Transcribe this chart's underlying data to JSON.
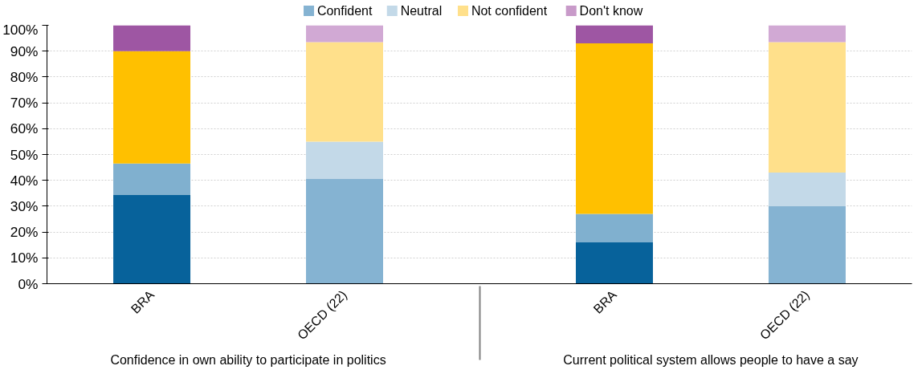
{
  "chart_data": {
    "type": "bar",
    "stacked": true,
    "categories": [
      "BRA",
      "OECD (22)",
      "BRA",
      "OECD (22)"
    ],
    "series": [
      {
        "name": "Confident",
        "color": "#85b3d2",
        "colors": [
          "#07629b",
          "#85b3d2",
          "#07629b",
          "#85b3d2"
        ],
        "values": [
          34.5,
          40.5,
          16,
          30
        ]
      },
      {
        "name": "Neutral",
        "color": "#c3d9e8",
        "colors": [
          "#80b0cf",
          "#c3d9e8",
          "#80b0cf",
          "#c3d9e8"
        ],
        "values": [
          12,
          14.5,
          11,
          13
        ]
      },
      {
        "name": "Not confident",
        "color": "#ffe08b",
        "colors": [
          "#ffc000",
          "#ffe08b",
          "#ffc000",
          "#ffe08b"
        ],
        "values": [
          43.5,
          38.5,
          66,
          50.5
        ]
      },
      {
        "name": "Don't know",
        "color": "#c89ac9",
        "colors": [
          "#9e56a3",
          "#d1a9d4",
          "#9e56a3",
          "#d1a9d4"
        ],
        "values": [
          10,
          6.5,
          7,
          6.5
        ]
      }
    ],
    "ylim": [
      0,
      100
    ],
    "yticks": [
      {
        "value": 0,
        "label": "0%"
      },
      {
        "value": 10,
        "label": "10%"
      },
      {
        "value": 20,
        "label": "20%"
      },
      {
        "value": 30,
        "label": "30%"
      },
      {
        "value": 40,
        "label": "40%"
      },
      {
        "value": 50,
        "label": "50%"
      },
      {
        "value": 60,
        "label": "60%"
      },
      {
        "value": 70,
        "label": "70%"
      },
      {
        "value": 80,
        "label": "80%"
      },
      {
        "value": 90,
        "label": "90%"
      },
      {
        "value": 100,
        "label": "100%"
      }
    ],
    "grid": "y",
    "legend": "top",
    "annotations": [
      "Confidence in own ability to participate in politics",
      "Current political system allows people to have a say"
    ]
  }
}
